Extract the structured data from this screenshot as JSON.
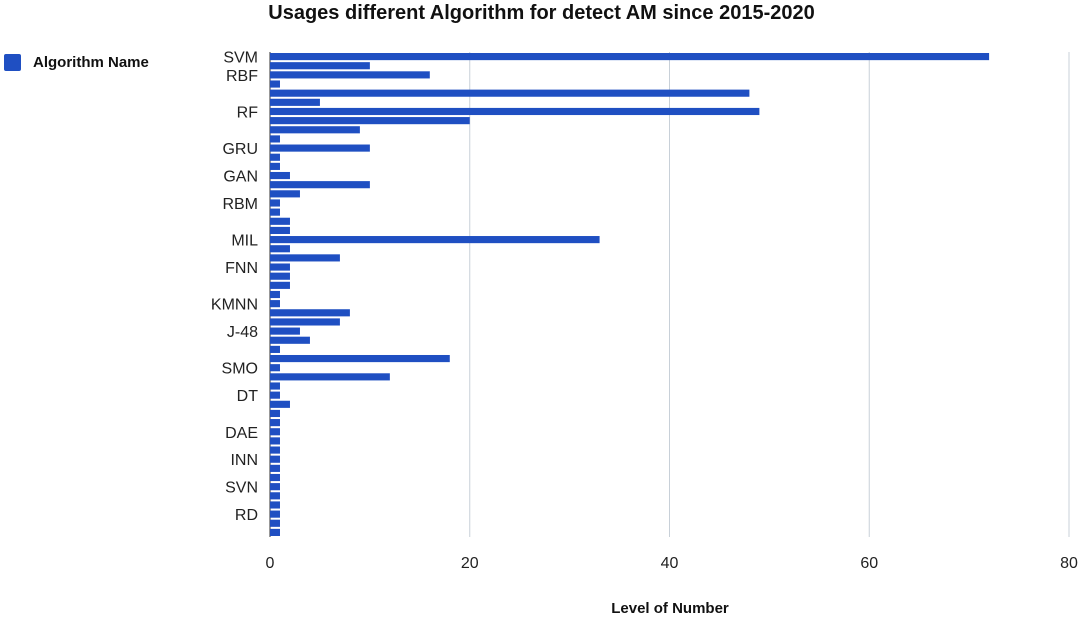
{
  "chart_data": {
    "type": "bar",
    "orientation": "horizontal",
    "title": "Usages different Algorithm for detect AM since 2015-2020",
    "xlabel": "Level of Number",
    "ylabel": "",
    "xlim": [
      0,
      80
    ],
    "x_ticks": [
      0,
      20,
      40,
      60,
      80
    ],
    "grid": "vertical",
    "legend": {
      "position": "top-left",
      "entries": [
        "Algorithm Name"
      ]
    },
    "color": "#1f4fc2",
    "labeled_categories": [
      "SVM",
      "RBF",
      "RF",
      "GRU",
      "GAN",
      "RBM",
      "MIL",
      "FNN",
      "KMNN",
      "J-48",
      "SMO",
      "DT",
      "DAE",
      "INN",
      "SVN",
      "RD"
    ],
    "categories": [
      "SVM",
      "",
      "RBF",
      "",
      "",
      "",
      "RF",
      "",
      "",
      "",
      "GRU",
      "",
      "",
      "GAN",
      "",
      "",
      "RBM",
      "",
      "",
      "",
      "MIL",
      "",
      "",
      "FNN",
      "",
      "",
      "",
      "KMNN",
      "",
      "",
      "J-48",
      "",
      "",
      "",
      "SMO",
      "",
      "",
      "DT",
      "",
      "",
      "",
      "DAE",
      "",
      "",
      "INN",
      "",
      "",
      "SVN",
      "",
      "",
      "RD",
      "",
      ""
    ],
    "values": [
      72,
      10,
      16,
      1,
      48,
      5,
      49,
      20,
      9,
      1,
      10,
      1,
      1,
      2,
      10,
      3,
      1,
      1,
      2,
      2,
      33,
      2,
      7,
      2,
      2,
      2,
      1,
      1,
      8,
      7,
      3,
      4,
      1,
      18,
      1,
      12,
      1,
      1,
      2,
      1,
      1,
      1,
      1,
      1,
      1,
      1,
      1,
      1,
      1,
      1,
      1,
      1,
      1
    ]
  }
}
